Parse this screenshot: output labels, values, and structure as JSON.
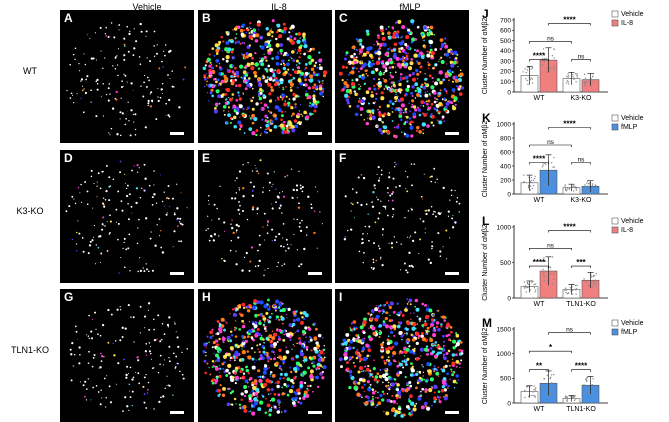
{
  "columns": [
    "Vehicle",
    "IL-8",
    "fMLP"
  ],
  "rows": [
    "WT",
    "K3-KO",
    "TLN1-KO"
  ],
  "panels": [
    {
      "letter": "A",
      "density": "low",
      "colors": "white"
    },
    {
      "letter": "B",
      "density": "high",
      "colors": "multi"
    },
    {
      "letter": "C",
      "density": "high",
      "colors": "multi"
    },
    {
      "letter": "D",
      "density": "low",
      "colors": "white"
    },
    {
      "letter": "E",
      "density": "low",
      "colors": "white"
    },
    {
      "letter": "F",
      "density": "low",
      "colors": "white"
    },
    {
      "letter": "G",
      "density": "low",
      "colors": "white"
    },
    {
      "letter": "H",
      "density": "high",
      "colors": "multi"
    },
    {
      "letter": "I",
      "density": "high",
      "colors": "multi"
    }
  ],
  "cluster_colors": [
    "#ffffff",
    "#ffe14d",
    "#ff3fd0",
    "#3fe0ff",
    "#ff7a1a",
    "#5a3cff",
    "#2bff6a",
    "#ff2a2a",
    "#1f4dff"
  ],
  "chart_data": [
    {
      "type": "bar",
      "letter": "J",
      "ylabel": "Cluster Number of αMβ2",
      "ylim": [
        0,
        700
      ],
      "yticks": [
        0,
        100,
        200,
        300,
        400,
        500,
        600,
        700
      ],
      "categories": [
        "WT",
        "K3-KO"
      ],
      "legend": [
        "Vehicle",
        "IL-8"
      ],
      "treat_color": "#f08080",
      "series": [
        {
          "name": "Vehicle",
          "values": [
            160,
            130
          ]
        },
        {
          "name": "IL-8",
          "values": [
            310,
            120
          ]
        }
      ],
      "errors": [
        [
          90,
          60
        ],
        [
          120,
          60
        ]
      ],
      "annotations": [
        {
          "text": "****",
          "pair": "wt"
        },
        {
          "text": "ns",
          "pair": "ko"
        },
        {
          "text": "ns",
          "pair": "veh"
        },
        {
          "text": "****",
          "pair": "treat"
        }
      ]
    },
    {
      "type": "bar",
      "letter": "K",
      "ylabel": "Cluster Number of αMβ2",
      "ylim": [
        0,
        1000
      ],
      "yticks": [
        0,
        200,
        400,
        600,
        800,
        1000
      ],
      "categories": [
        "WT",
        "K3-KO"
      ],
      "legend": [
        "Vehicle",
        "fMLP"
      ],
      "treat_color": "#4a90e2",
      "series": [
        {
          "name": "Vehicle",
          "values": [
            160,
            90
          ]
        },
        {
          "name": "fMLP",
          "values": [
            340,
            110
          ]
        }
      ],
      "errors": [
        [
          110,
          50
        ],
        [
          220,
          80
        ]
      ],
      "annotations": [
        {
          "text": "****",
          "pair": "wt"
        },
        {
          "text": "ns",
          "pair": "ko"
        },
        {
          "text": "ns",
          "pair": "veh"
        },
        {
          "text": "****",
          "pair": "treat"
        }
      ]
    },
    {
      "type": "bar",
      "letter": "L",
      "ylabel": "Cluster Number of αMβ2",
      "ylim": [
        0,
        1000
      ],
      "yticks": [
        0,
        500,
        1000
      ],
      "categories": [
        "WT",
        "TLN1-KO"
      ],
      "legend": [
        "Vehicle",
        "IL-8"
      ],
      "treat_color": "#f08080",
      "series": [
        {
          "name": "Vehicle",
          "values": [
            160,
            120
          ]
        },
        {
          "name": "IL-8",
          "values": [
            380,
            250
          ]
        }
      ],
      "errors": [
        [
          80,
          70
        ],
        [
          200,
          110
        ]
      ],
      "annotations": [
        {
          "text": "****",
          "pair": "wt"
        },
        {
          "text": "***",
          "pair": "ko"
        },
        {
          "text": "ns",
          "pair": "veh"
        },
        {
          "text": "****",
          "pair": "treat"
        }
      ]
    },
    {
      "type": "bar",
      "letter": "M",
      "ylabel": "Cluster Number of αMβ2",
      "ylim": [
        0,
        1500
      ],
      "yticks": [
        0,
        500,
        1000,
        1500
      ],
      "categories": [
        "WT",
        "TLN1-KO"
      ],
      "legend": [
        "Vehicle",
        "fMLP"
      ],
      "treat_color": "#4a90e2",
      "series": [
        {
          "name": "Vehicle",
          "values": [
            230,
            90
          ]
        },
        {
          "name": "fMLP",
          "values": [
            400,
            360
          ]
        }
      ],
      "errors": [
        [
          120,
          60
        ],
        [
          250,
          180
        ]
      ],
      "annotations": [
        {
          "text": "**",
          "pair": "wt"
        },
        {
          "text": "****",
          "pair": "ko"
        },
        {
          "text": "*",
          "pair": "veh"
        },
        {
          "text": "ns",
          "pair": "treat"
        }
      ]
    }
  ]
}
